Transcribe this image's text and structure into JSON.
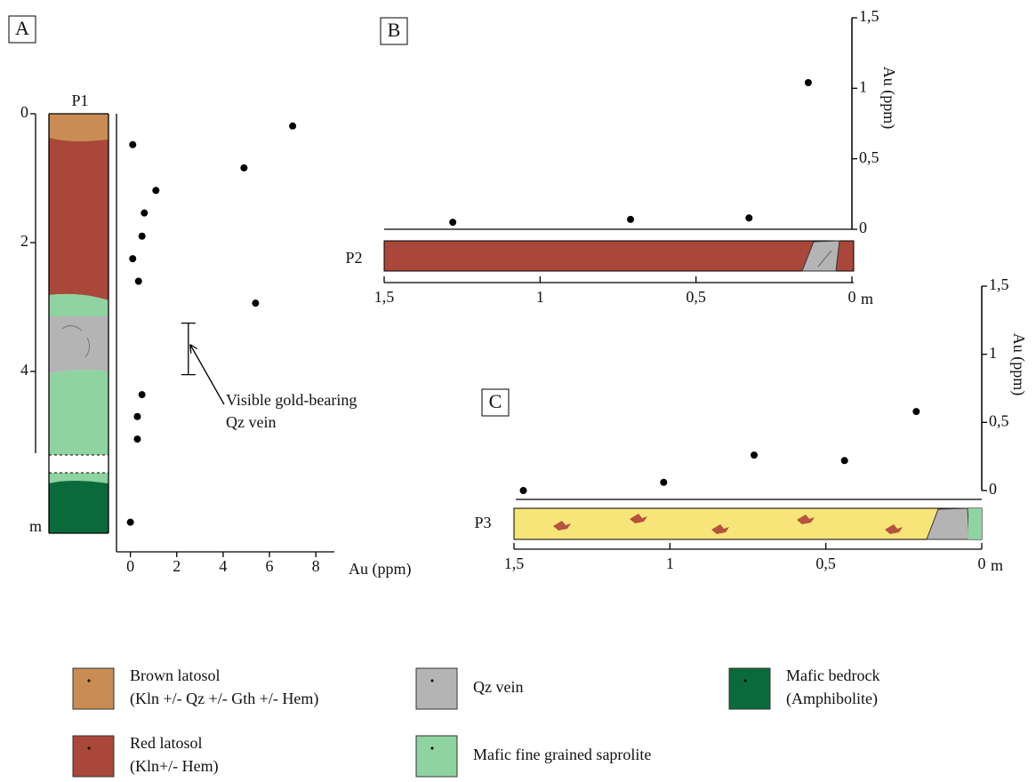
{
  "chart_data": [
    {
      "type": "scatter",
      "panel": "A",
      "profile": "P1",
      "color": "#000000",
      "x": [
        0.1,
        7.0,
        4.9,
        1.1,
        0.6,
        0.5,
        0.1,
        0.35,
        5.4,
        0.5,
        0.3,
        0.3,
        0
      ],
      "values": [
        0.48,
        0.19,
        0.84,
        1.19,
        1.54,
        1.9,
        2.25,
        2.6,
        2.94,
        4.36,
        4.7,
        5.05,
        6.34
      ],
      "xlim": [
        -0.6,
        8.8
      ],
      "ylim": [
        6.8,
        0
      ],
      "xticks": [
        0,
        2,
        4,
        6,
        8
      ],
      "yticks": [
        0,
        2,
        4
      ],
      "x_label": "Au (ppm)",
      "y_label": "m",
      "annotation": {
        "text": [
          "Visible gold-bearing",
          "Qz vein"
        ],
        "x": 2.5,
        "range": [
          3.25,
          4.05
        ]
      }
    },
    {
      "type": "scatter",
      "panel": "B",
      "profile": "P2",
      "color": "#000000",
      "x": [
        1.28,
        0.71,
        0.33,
        0.14
      ],
      "values": [
        0.05,
        0.07,
        0.08,
        1.04
      ],
      "xlim": [
        1.5,
        0
      ],
      "ylim": [
        0,
        1.5
      ],
      "xticks": [
        {
          "value": 1.5,
          "label": "1,5"
        },
        1,
        {
          "value": 0.5,
          "label": "0,5"
        },
        0
      ],
      "yticks": [
        0,
        {
          "value": 0.5,
          "label": "0,5"
        },
        1,
        {
          "value": 1.5,
          "label": "1,5"
        }
      ],
      "x_label": "m",
      "y_label": "Au (ppm)"
    },
    {
      "type": "scatter",
      "panel": "C",
      "profile": "P3",
      "color": "#000000",
      "x": [
        1.47,
        1.02,
        0.73,
        0.44,
        0.21
      ],
      "values": [
        0,
        0.06,
        0.26,
        0.22,
        0.58
      ],
      "xlim": [
        1.5,
        0
      ],
      "ylim": [
        0,
        1.5
      ],
      "xticks": [
        {
          "value": 1.5,
          "label": "1,5"
        },
        1,
        {
          "value": 0.5,
          "label": "0,5"
        },
        0
      ],
      "yticks": [
        0,
        {
          "value": 0.5,
          "label": "0,5"
        },
        1,
        {
          "value": 1.5,
          "label": "1,5"
        }
      ],
      "x_label": "m",
      "y_label": "Au (ppm)"
    }
  ],
  "legend": [
    {
      "label": [
        "Brown latosol",
        "(Kln +/- Qz +/- Gth +/- Hem)"
      ],
      "color": "#c98c55"
    },
    {
      "label": [
        "Red latosol",
        "(Kln+/- Hem)"
      ],
      "color": "#a9473a"
    },
    {
      "label": [
        "Qz vein"
      ],
      "color": "#b4b4b4"
    },
    {
      "label": [
        "Mafic fine grained saprolite"
      ],
      "color": "#8fd3a0"
    },
    {
      "label": [
        "Mafic bedrock",
        "(Amphibolite)"
      ],
      "color": "#0b6a3c"
    }
  ]
}
